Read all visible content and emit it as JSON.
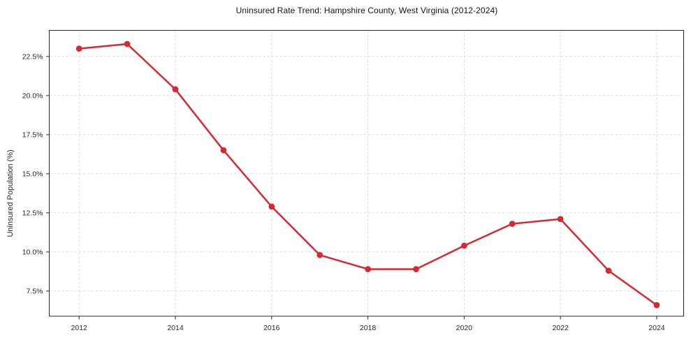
{
  "window": {
    "background": "#ffffff"
  },
  "chart_data": {
    "type": "line",
    "title": "Uninsured Rate Trend: Hampshire County, West Virginia (2012-2024)",
    "xlabel": "",
    "ylabel": "Uninsured Population (%)",
    "x": [
      2012,
      2013,
      2014,
      2015,
      2016,
      2017,
      2018,
      2019,
      2020,
      2021,
      2022,
      2023,
      2024
    ],
    "series": [
      {
        "name": "Uninsured rate",
        "values": [
          23.0,
          23.3,
          20.4,
          16.5,
          12.9,
          9.8,
          8.9,
          8.9,
          10.4,
          11.8,
          12.1,
          8.8,
          6.6
        ]
      }
    ],
    "x_ticks": [
      2012,
      2014,
      2016,
      2018,
      2020,
      2022,
      2024
    ],
    "x_tick_labels": [
      "2012",
      "2014",
      "2016",
      "2018",
      "2020",
      "2022",
      "2024"
    ],
    "y_ticks": [
      7.5,
      10.0,
      12.5,
      15.0,
      17.5,
      20.0,
      22.5
    ],
    "y_tick_labels": [
      "7.5%",
      "10.0%",
      "12.5%",
      "15.0%",
      "17.5%",
      "20.0%",
      "22.5%"
    ],
    "xlim": [
      2011.38,
      2024.56
    ],
    "ylim": [
      5.89,
      24.17
    ],
    "grid": true,
    "legend_position": "none",
    "style": {
      "line_color": "#d42a33",
      "marker_color": "#d42a33",
      "grid_color": "#dcdcdc",
      "axis_color": "#262626",
      "text_color": "#262626",
      "tick_font_size": 10.5,
      "line_width": 2.5,
      "marker_radius": 4.4,
      "grid_dash": "3.5 2.5"
    }
  }
}
